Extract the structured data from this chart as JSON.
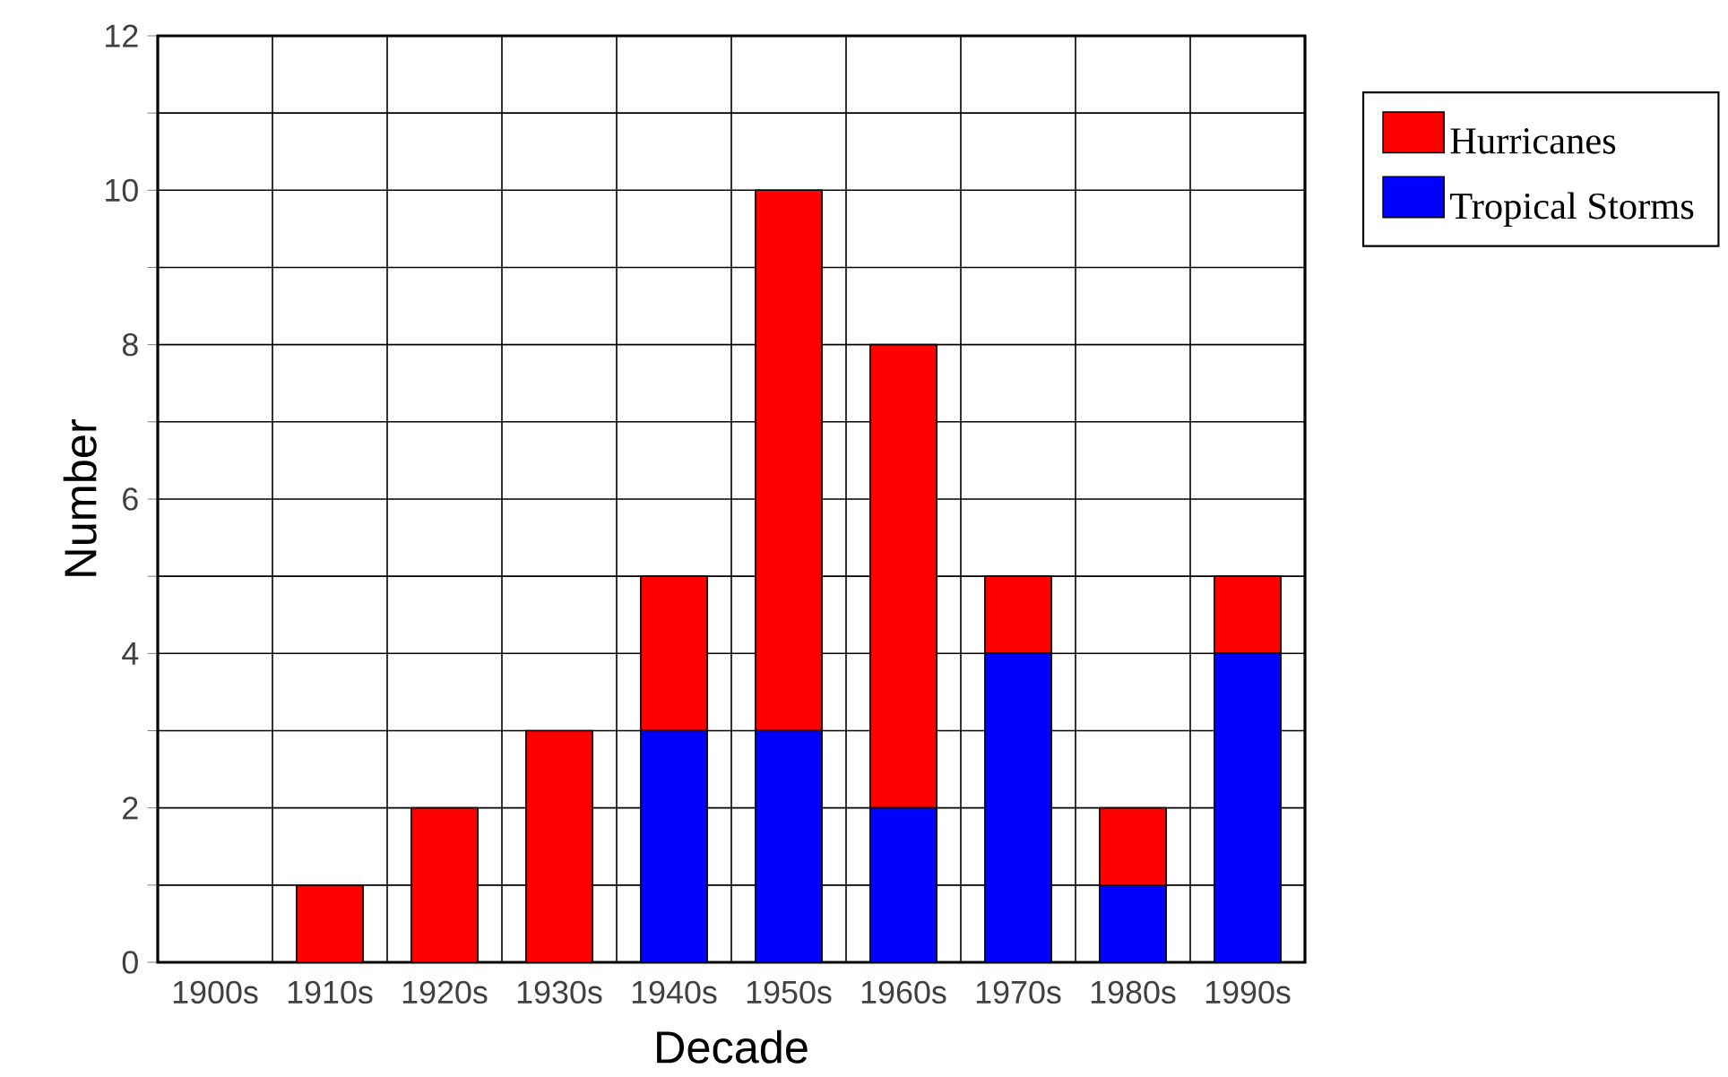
{
  "chart_data": {
    "type": "bar",
    "stacked": true,
    "xlabel": "Decade",
    "ylabel": "Number",
    "categories": [
      "1900s",
      "1910s",
      "1920s",
      "1930s",
      "1940s",
      "1950s",
      "1960s",
      "1970s",
      "1980s",
      "1990s"
    ],
    "series": [
      {
        "name": "Tropical Storms",
        "color": "#0000ff",
        "values": [
          0,
          0,
          0,
          0,
          3,
          3,
          2,
          4,
          1,
          4
        ]
      },
      {
        "name": "Hurricanes",
        "color": "#ff0000",
        "values": [
          0,
          1,
          2,
          3,
          2,
          7,
          6,
          1,
          1,
          1
        ]
      }
    ],
    "ylim": [
      0,
      12
    ],
    "yticks": [
      0,
      {
        "value": 1,
        "label": null
      },
      2,
      {
        "value": 3,
        "label": null
      },
      4,
      {
        "value": 5,
        "label": null
      },
      6,
      {
        "value": 7,
        "label": null
      },
      8,
      {
        "value": 9,
        "label": null
      },
      10,
      {
        "value": 11,
        "label": null
      },
      12
    ],
    "grid": true,
    "legend": "right"
  }
}
